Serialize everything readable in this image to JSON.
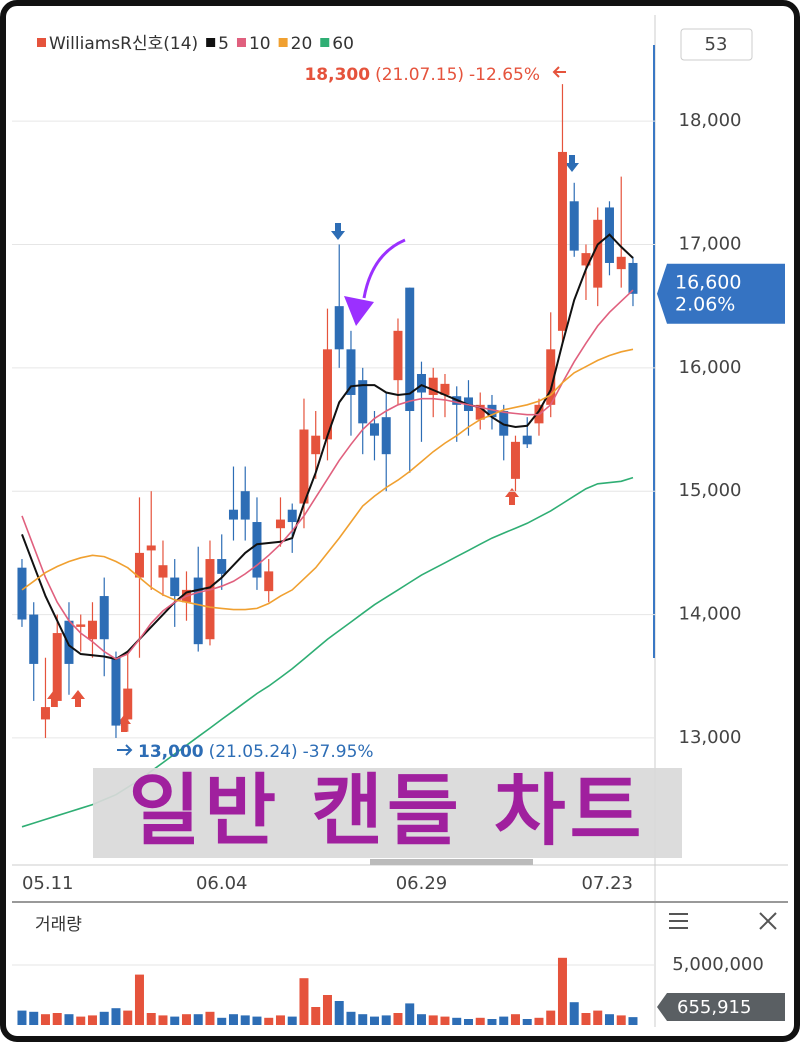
{
  "overlay_title": "일반 캔들 차트",
  "period_box": "53",
  "chart_data": [
    {
      "type": "candlestick",
      "indicator": {
        "name": "WilliamsR신호(14)",
        "color": "#e5533c"
      },
      "categories": [
        "05.11",
        null,
        null,
        null,
        null,
        null,
        null,
        null,
        null,
        null,
        null,
        null,
        null,
        null,
        null,
        null,
        null,
        "06.04",
        null,
        null,
        null,
        null,
        null,
        null,
        null,
        null,
        null,
        null,
        null,
        null,
        null,
        null,
        null,
        null,
        "06.29",
        null,
        null,
        null,
        null,
        null,
        null,
        null,
        null,
        null,
        null,
        null,
        null,
        null,
        null,
        null,
        null,
        null,
        "07.23"
      ],
      "open": [
        14380,
        14000,
        13150,
        13300,
        13950,
        13900,
        13800,
        14150,
        13650,
        13150,
        14300,
        14520,
        14300,
        14300,
        14100,
        14300,
        13800,
        14450,
        14850,
        15000,
        14750,
        14190,
        14700,
        14850,
        14900,
        15300,
        15420,
        16500,
        16150,
        15900,
        15550,
        15600,
        15900,
        16650,
        15950,
        15780,
        15780,
        15770,
        15760,
        15580,
        15700,
        15650,
        15100,
        15450,
        15550,
        15700,
        16300,
        17350,
        16830,
        16650,
        17300,
        16800,
        16850
      ],
      "high": [
        14450,
        14100,
        13650,
        14000,
        14100,
        14000,
        14100,
        14300,
        13700,
        13700,
        14950,
        15000,
        14600,
        14450,
        14350,
        14550,
        14600,
        14650,
        15200,
        15200,
        14950,
        14450,
        14950,
        14900,
        15750,
        15650,
        16480,
        17000,
        16300,
        16000,
        15650,
        15800,
        16400,
        16650,
        16050,
        16000,
        15950,
        15850,
        15900,
        15800,
        15780,
        15700,
        15450,
        15600,
        15750,
        16450,
        18300,
        17500,
        17000,
        17300,
        17350,
        17550,
        16900
      ],
      "low": [
        13900,
        13300,
        13000,
        13250,
        13350,
        13700,
        13650,
        13500,
        13000,
        13050,
        13650,
        14200,
        14150,
        13900,
        13950,
        13700,
        13750,
        14200,
        14600,
        14600,
        14200,
        14100,
        14550,
        14500,
        14700,
        15100,
        15250,
        16000,
        15450,
        15300,
        15250,
        15000,
        15700,
        15150,
        15400,
        15600,
        15600,
        15400,
        15450,
        15500,
        15500,
        15250,
        15000,
        15350,
        15450,
        15600,
        16200,
        16900,
        16550,
        16500,
        16750,
        16650,
        16500
      ],
      "close": [
        13960,
        13600,
        13250,
        13850,
        13600,
        13920,
        13950,
        13800,
        13100,
        13400,
        14500,
        14560,
        14400,
        14150,
        14200,
        13760,
        14450,
        14330,
        14770,
        14770,
        14300,
        14350,
        14770,
        14750,
        15500,
        15450,
        16150,
        16150,
        15780,
        15550,
        15450,
        15300,
        16300,
        15650,
        15800,
        15920,
        15870,
        15700,
        15650,
        15700,
        15600,
        15450,
        15400,
        15380,
        15700,
        16150,
        17750,
        16950,
        16930,
        17200,
        16850,
        16900,
        16600
      ],
      "up_color": "#e5533c",
      "down_color": "#2d6db5",
      "series": [
        {
          "name": "5",
          "color": "#111111",
          "values": [
            14650,
            14400,
            14150,
            13950,
            13750,
            13680,
            13670,
            13660,
            13640,
            13700,
            13800,
            13900,
            14000,
            14100,
            14180,
            14200,
            14220,
            14300,
            14400,
            14500,
            14570,
            14580,
            14590,
            14620,
            14900,
            15150,
            15450,
            15720,
            15850,
            15860,
            15860,
            15800,
            15780,
            15790,
            15860,
            15820,
            15780,
            15740,
            15700,
            15680,
            15600,
            15540,
            15520,
            15530,
            15650,
            15820,
            16200,
            16550,
            16800,
            17000,
            17080,
            16980,
            16890
          ]
        },
        {
          "name": "10",
          "color": "#e0607e",
          "values": [
            14800,
            14550,
            14300,
            14100,
            13950,
            13850,
            13780,
            13700,
            13640,
            13680,
            13800,
            13930,
            14030,
            14100,
            14150,
            14180,
            14200,
            14230,
            14270,
            14330,
            14400,
            14480,
            14570,
            14680,
            14800,
            14950,
            15100,
            15250,
            15380,
            15500,
            15590,
            15650,
            15700,
            15730,
            15750,
            15750,
            15740,
            15720,
            15700,
            15680,
            15660,
            15640,
            15630,
            15620,
            15620,
            15700,
            15880,
            16050,
            16200,
            16340,
            16450,
            16540,
            16630
          ]
        },
        {
          "name": "20",
          "color": "#f0a030",
          "values": [
            14200,
            14270,
            14340,
            14390,
            14430,
            14460,
            14480,
            14470,
            14430,
            14380,
            14300,
            14220,
            14160,
            14120,
            14100,
            14080,
            14060,
            14050,
            14040,
            14040,
            14050,
            14090,
            14150,
            14200,
            14290,
            14380,
            14500,
            14620,
            14750,
            14880,
            14960,
            15030,
            15090,
            15160,
            15240,
            15320,
            15390,
            15450,
            15520,
            15580,
            15620,
            15660,
            15680,
            15700,
            15730,
            15780,
            15880,
            15960,
            16010,
            16060,
            16100,
            16130,
            16150
          ]
        },
        {
          "name": "60",
          "color": "#2fae74",
          "values": [
            12280,
            12310,
            12340,
            12370,
            12400,
            12430,
            12460,
            12500,
            12540,
            12600,
            12660,
            12730,
            12800,
            12870,
            12940,
            13010,
            13080,
            13150,
            13220,
            13290,
            13360,
            13420,
            13490,
            13560,
            13640,
            13720,
            13800,
            13870,
            13940,
            14010,
            14080,
            14140,
            14200,
            14260,
            14320,
            14370,
            14420,
            14470,
            14520,
            14570,
            14620,
            14660,
            14700,
            14740,
            14790,
            14840,
            14900,
            14960,
            15020,
            15060,
            15070,
            15080,
            15110
          ]
        }
      ],
      "ylim": [
        11970,
        18860
      ],
      "yticks": [
        {
          "value": 13000,
          "label": "13,000"
        },
        {
          "value": 14000,
          "label": "14,000"
        },
        {
          "value": 15000,
          "label": "15,000"
        },
        {
          "value": 16000,
          "label": "16,000"
        },
        {
          "value": 17000,
          "label": "17,000"
        },
        {
          "value": 18000,
          "label": "18,000"
        }
      ],
      "grid": true,
      "max_annotation": {
        "value": 18300,
        "label": "18,300",
        "date": "(21.07.15)",
        "change": "-12.65%"
      },
      "min_annotation": {
        "value": 13000,
        "label": "13,000",
        "date": "(21.05.24)",
        "change": "-37.95%"
      },
      "last_price": {
        "value": 16600,
        "label": "16,600"
      },
      "change_pct": {
        "value": 2.06,
        "label": "2.06%"
      }
    },
    {
      "type": "volume",
      "title": "거래량",
      "values": [
        1200000,
        1100000,
        900000,
        1000000,
        900000,
        700000,
        800000,
        1100000,
        1400000,
        1200000,
        4200000,
        1000000,
        800000,
        700000,
        900000,
        900000,
        1100000,
        600000,
        900000,
        800000,
        700000,
        600000,
        800000,
        700000,
        3900000,
        1500000,
        2500000,
        2000000,
        1100000,
        900000,
        700000,
        800000,
        1000000,
        1800000,
        900000,
        800000,
        700000,
        600000,
        500000,
        600000,
        500000,
        700000,
        900000,
        500000,
        600000,
        1200000,
        5600000,
        1900000,
        1000000,
        1200000,
        900000,
        800000,
        655915
      ],
      "ylim": [
        0,
        10000000
      ],
      "yticks": [
        {
          "value": 5000000,
          "label": "5,000,000"
        }
      ],
      "grid": true,
      "last_volume": {
        "value": 655915,
        "label": "655,915"
      }
    }
  ]
}
